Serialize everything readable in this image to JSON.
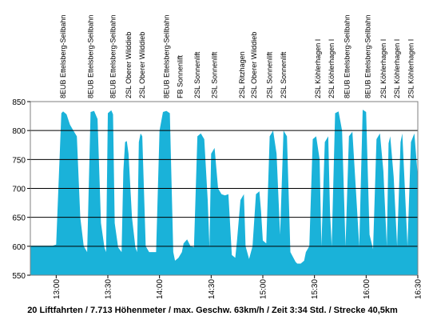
{
  "chart_data": {
    "type": "area",
    "caption": "20 Liftfahrten / 7.713 Höhenmeter / max. Geschw. 63km/h / Zeit 3:34 Std. / Strecke 40,5km",
    "series_color": "#1ab2d9",
    "ylim": [
      550,
      850
    ],
    "yticks": [
      550,
      600,
      650,
      700,
      750,
      800,
      850
    ],
    "xlim": [
      "12:45",
      "16:30"
    ],
    "xticks": [
      "13:00",
      "13:30",
      "14:00",
      "14:30",
      "15:00",
      "15:30",
      "16:00",
      "16:30"
    ],
    "lift_labels": [
      {
        "time": "13:04",
        "label": "8EUB Ettelsberg-Seilbahn"
      },
      {
        "time": "13:20",
        "label": "8EUB Ettelsberg-Seilbahn"
      },
      {
        "time": "13:33",
        "label": "8EUB Ettelsberg-Seilbahn"
      },
      {
        "time": "13:42",
        "label": "2SL Oberer Wilddieb"
      },
      {
        "time": "13:50",
        "label": "2SL Oberer Wilddieb"
      },
      {
        "time": "14:04",
        "label": "8EUB Ettelsberg-Seilbahn"
      },
      {
        "time": "14:12",
        "label": "FB Sonnenlift"
      },
      {
        "time": "14:22",
        "label": "2SL Sonnenlift"
      },
      {
        "time": "14:32",
        "label": "2SL Sonnenlift"
      },
      {
        "time": "14:48",
        "label": "2SL Ritzhagen"
      },
      {
        "time": "14:55",
        "label": "2SL Oberer Wilddieb"
      },
      {
        "time": "15:04",
        "label": "2SL Sonnenlift"
      },
      {
        "time": "15:12",
        "label": "2SL Sonnenlift"
      },
      {
        "time": "15:32",
        "label": "2SL Köhlerhagen I"
      },
      {
        "time": "15:40",
        "label": "2SL Köhlerhagen I"
      },
      {
        "time": "15:49",
        "label": "8EUB Ettelsberg-Seilbahn"
      },
      {
        "time": "16:01",
        "label": "8EUB Ettelsberg-Seilbahn"
      },
      {
        "time": "16:10",
        "label": "2SL Köhlerhagen I"
      },
      {
        "time": "16:18",
        "label": "2SL Köhlerhagen I"
      },
      {
        "time": "16:26",
        "label": "2SL Köhlerhagen I"
      }
    ],
    "x": [
      "12:45",
      "12:55",
      "12:58",
      "13:00",
      "13:03",
      "13:04",
      "13:06",
      "13:08",
      "13:10",
      "13:12",
      "13:14",
      "13:16",
      "13:17",
      "13:18",
      "13:20",
      "13:22",
      "13:24",
      "13:26",
      "13:28",
      "13:29",
      "13:30",
      "13:32",
      "13:33",
      "13:34",
      "13:36",
      "13:38",
      "13:39",
      "13:40",
      "13:41",
      "13:42",
      "13:44",
      "13:46",
      "13:47",
      "13:48",
      "13:49",
      "13:50",
      "13:52",
      "13:54",
      "13:56",
      "13:58",
      "14:00",
      "14:02",
      "14:04",
      "14:06",
      "14:08",
      "14:09",
      "14:11",
      "14:13",
      "14:14",
      "14:16",
      "14:18",
      "14:20",
      "14:22",
      "14:24",
      "14:26",
      "14:28",
      "14:29",
      "14:30",
      "14:32",
      "14:34",
      "14:36",
      "14:38",
      "14:40",
      "14:42",
      "14:44",
      "14:45",
      "14:47",
      "14:49",
      "14:50",
      "14:52",
      "14:54",
      "14:56",
      "14:58",
      "14:59",
      "15:00",
      "15:02",
      "15:04",
      "15:06",
      "15:08",
      "15:10",
      "15:12",
      "15:14",
      "15:16",
      "15:19",
      "15:20",
      "15:22",
      "15:24",
      "15:25",
      "15:27",
      "15:29",
      "15:31",
      "15:33",
      "15:34",
      "15:36",
      "15:38",
      "15:39",
      "15:40",
      "15:42",
      "15:44",
      "15:46",
      "15:48",
      "15:50",
      "15:52",
      "15:54",
      "15:56",
      "15:58",
      "16:00",
      "16:02",
      "16:04",
      "16:06",
      "16:08",
      "16:10",
      "16:12",
      "16:13",
      "16:14",
      "16:16",
      "16:18",
      "16:20",
      "16:21",
      "16:22",
      "16:24",
      "16:26",
      "16:28",
      "16:30"
    ],
    "values": [
      601,
      601,
      601,
      603,
      830,
      833,
      828,
      810,
      800,
      790,
      650,
      600,
      595,
      590,
      832,
      834,
      820,
      640,
      598,
      590,
      830,
      835,
      828,
      640,
      598,
      590,
      730,
      780,
      782,
      760,
      650,
      598,
      590,
      780,
      795,
      790,
      600,
      590,
      590,
      590,
      800,
      832,
      834,
      830,
      590,
      575,
      580,
      590,
      605,
      612,
      600,
      598,
      790,
      795,
      785,
      680,
      598,
      760,
      770,
      700,
      690,
      688,
      690,
      585,
      580,
      610,
      680,
      690,
      600,
      578,
      600,
      690,
      695,
      660,
      610,
      605,
      790,
      800,
      760,
      620,
      800,
      790,
      590,
      573,
      570,
      570,
      575,
      590,
      600,
      785,
      790,
      750,
      600,
      780,
      790,
      660,
      600,
      830,
      833,
      800,
      600,
      790,
      798,
      700,
      600,
      836,
      832,
      620,
      595,
      785,
      795,
      730,
      600,
      778,
      790,
      720,
      600,
      780,
      795,
      730,
      600,
      780,
      795,
      720
    ]
  }
}
